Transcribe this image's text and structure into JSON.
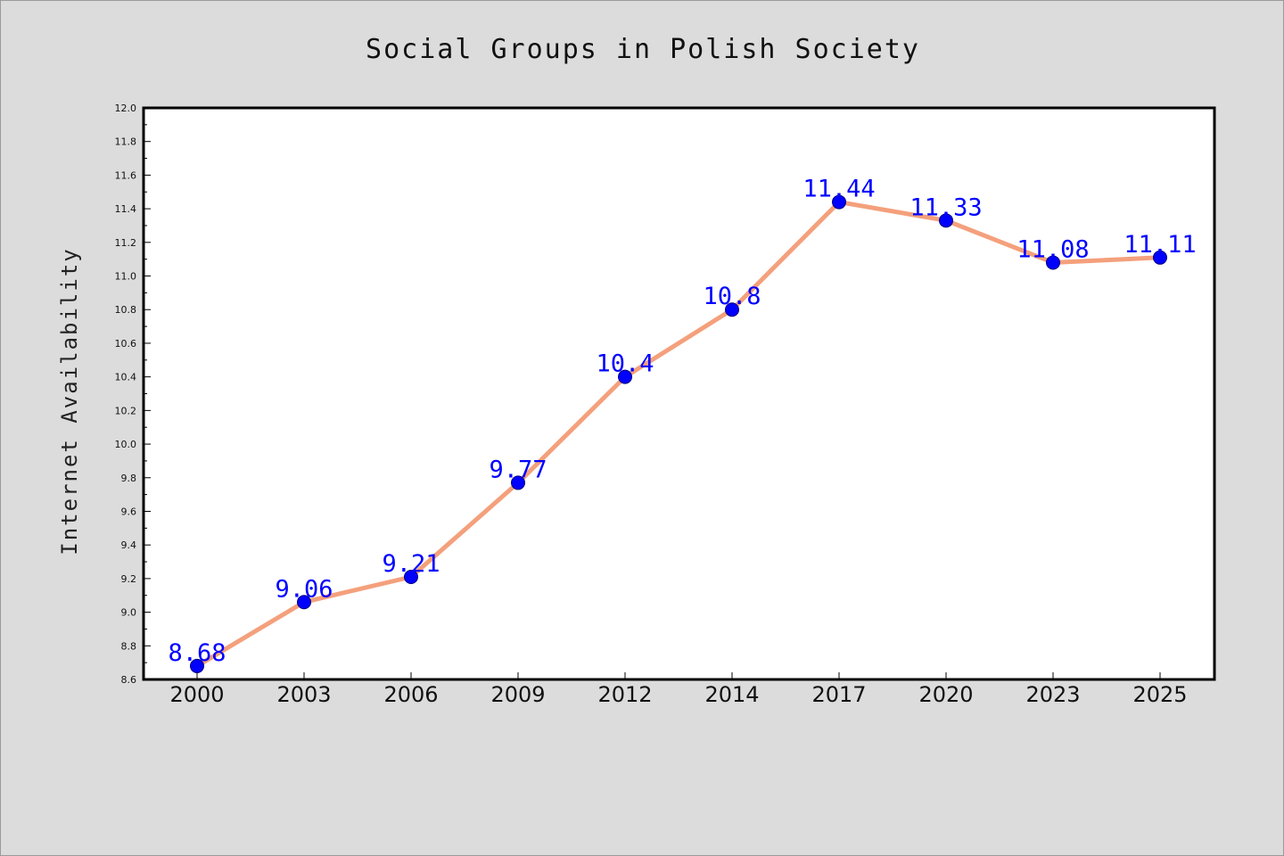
{
  "chart_data": {
    "type": "line",
    "title": "Social Groups in Polish Society",
    "xlabel": "",
    "ylabel": "Internet Availability",
    "categories": [
      "2000",
      "2003",
      "2006",
      "2009",
      "2012",
      "2014",
      "2017",
      "2020",
      "2023",
      "2025"
    ],
    "series": [
      {
        "values": [
          8.68,
          9.06,
          9.21,
          9.77,
          10.4,
          10.8,
          11.44,
          11.33,
          11.08,
          11.11
        ]
      }
    ],
    "data_labels": [
      "8.68",
      "9.06",
      "9.21",
      "9.77",
      "10.4",
      "10.8",
      "11.44",
      "11.33",
      "11.08",
      "11.11"
    ],
    "ylim": [
      8.6,
      12.0
    ],
    "yticks": [
      "8.6",
      "8.8",
      "9.0",
      "9.2",
      "9.4",
      "9.6",
      "9.8",
      "10.0",
      "10.2",
      "10.4",
      "10.6",
      "10.8",
      "11.0",
      "11.2",
      "11.4",
      "11.6",
      "11.8",
      "12.0"
    ],
    "grid": false,
    "legend": "none",
    "colors": {
      "line": "#f4a07c",
      "marker_fill": "#0000ff",
      "marker_stroke": "#000080",
      "data_label": "#0000ff",
      "background": "#dcdcdc",
      "plot_background": "#ffffff"
    }
  }
}
